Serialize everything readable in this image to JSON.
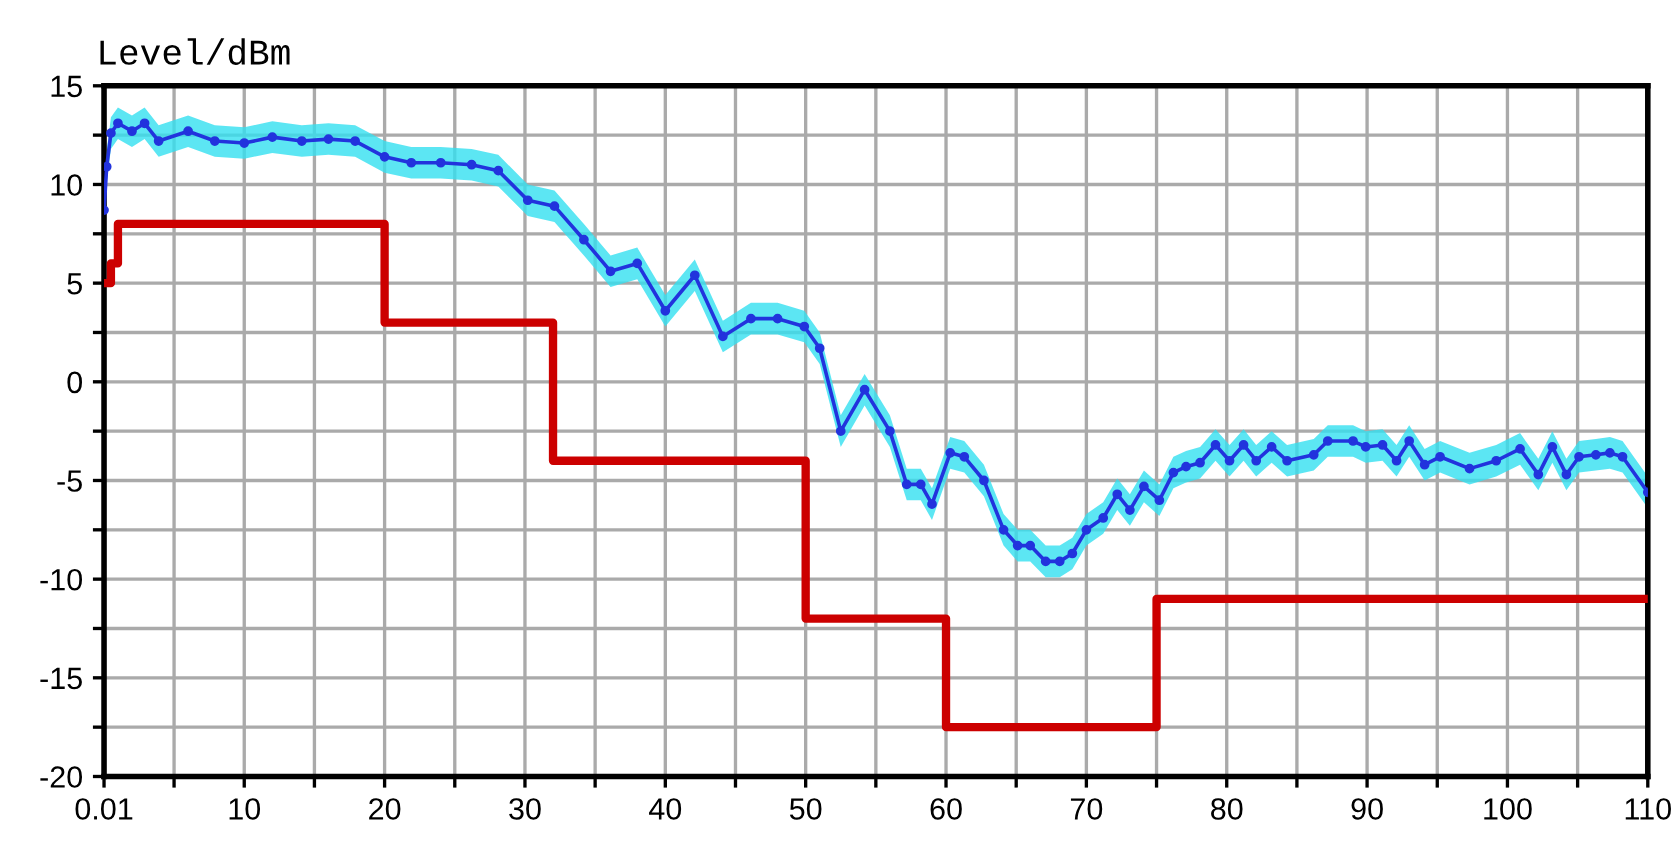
{
  "chart_data": {
    "type": "line",
    "ylabel": "Level/dBm",
    "xlim": [
      0.01,
      110
    ],
    "ylim": [
      -20,
      15
    ],
    "xticks": [
      {
        "value": 0.01,
        "label": "0.01"
      },
      {
        "value": 5,
        "label": null
      },
      10,
      {
        "value": 15,
        "label": null
      },
      20,
      {
        "value": 25,
        "label": null
      },
      30,
      {
        "value": 35,
        "label": null
      },
      40,
      {
        "value": 45,
        "label": null
      },
      50,
      {
        "value": 55,
        "label": null
      },
      60,
      {
        "value": 65,
        "label": null
      },
      70,
      {
        "value": 75,
        "label": null
      },
      80,
      {
        "value": 85,
        "label": null
      },
      90,
      {
        "value": 95,
        "label": null
      },
      100,
      {
        "value": 105,
        "label": null
      },
      110
    ],
    "yticks": [
      -20,
      {
        "value": -17.5,
        "label": null
      },
      -15,
      {
        "value": -12.5,
        "label": null
      },
      -10,
      {
        "value": -7.5,
        "label": null
      },
      -5,
      {
        "value": -2.5,
        "label": null
      },
      0,
      {
        "value": 2.5,
        "label": null
      },
      5,
      {
        "value": 7.5,
        "label": null
      },
      10,
      {
        "value": 12.5,
        "label": null
      },
      15
    ],
    "grid": true,
    "legend": false,
    "series": [
      {
        "color": "#2233dd",
        "marker": "circle",
        "x": [
          0.01,
          0.2,
          0.5,
          1,
          2,
          2.9,
          3.9,
          6,
          7.9,
          10,
          12,
          14.1,
          16,
          17.9,
          20,
          21.9,
          24,
          26.2,
          28.1,
          30.2,
          32.1,
          34.2,
          36.1,
          38,
          40,
          42.1,
          44.1,
          46.1,
          48,
          49.9,
          51,
          52.5,
          54.2,
          56,
          57.2,
          58.2,
          59,
          60.3,
          61.3,
          62.7,
          64.1,
          65.1,
          66,
          67.1,
          68.1,
          69,
          70,
          71.2,
          72.2,
          73.1,
          74.1,
          75.2,
          76.2,
          77.1,
          78.1,
          79.2,
          80.2,
          81.2,
          82.1,
          83.2,
          84.3,
          86.2,
          87.2,
          89,
          89.9,
          91.1,
          92.1,
          93,
          94.1,
          95.2,
          97.3,
          99.2,
          100.9,
          102.2,
          103.2,
          104.2,
          105.1,
          106.3,
          107.3,
          108.2,
          110
        ],
        "values": [
          8.7,
          10.9,
          12.6,
          13.1,
          12.7,
          13.1,
          12.2,
          12.7,
          12.2,
          12.1,
          12.4,
          12.2,
          12.3,
          12.2,
          11.4,
          11.1,
          11.1,
          11.0,
          10.7,
          9.2,
          8.9,
          7.2,
          5.6,
          6.0,
          3.6,
          5.4,
          2.3,
          3.2,
          3.2,
          2.8,
          1.7,
          -2.5,
          -0.4,
          -2.5,
          -5.2,
          -5.2,
          -6.2,
          -3.6,
          -3.8,
          -5.0,
          -7.5,
          -8.3,
          -8.3,
          -9.1,
          -9.1,
          -8.7,
          -7.5,
          -6.9,
          -5.7,
          -6.5,
          -5.3,
          -6.0,
          -4.6,
          -4.3,
          -4.1,
          -3.2,
          -4.0,
          -3.2,
          -4.0,
          -3.3,
          -4.0,
          -3.7,
          -3.0,
          -3.0,
          -3.3,
          -3.2,
          -4.0,
          -3.0,
          -4.2,
          -3.8,
          -4.4,
          -4.0,
          -3.4,
          -4.7,
          -3.3,
          -4.7,
          -3.8,
          -3.7,
          -3.6,
          -3.8,
          -5.6
        ],
        "lower": [
          7.9,
          10.1,
          11.8,
          12.3,
          11.9,
          12.3,
          11.4,
          11.9,
          11.4,
          11.3,
          11.6,
          11.4,
          11.5,
          11.4,
          10.6,
          10.3,
          10.3,
          10.2,
          9.9,
          8.4,
          8.1,
          6.4,
          4.8,
          5.2,
          2.8,
          4.6,
          1.5,
          2.4,
          2.4,
          2.0,
          0.9,
          -3.3,
          -1.2,
          -3.3,
          -6.0,
          -6.0,
          -7.0,
          -4.4,
          -4.6,
          -5.8,
          -8.3,
          -9.1,
          -9.1,
          -9.9,
          -9.9,
          -9.5,
          -8.3,
          -7.7,
          -6.5,
          -7.3,
          -6.1,
          -6.8,
          -5.4,
          -5.1,
          -4.9,
          -4.0,
          -4.8,
          -4.0,
          -4.8,
          -4.1,
          -4.8,
          -4.5,
          -3.8,
          -3.8,
          -4.1,
          -4.0,
          -4.8,
          -3.8,
          -5.0,
          -4.6,
          -5.2,
          -4.8,
          -4.2,
          -5.5,
          -4.1,
          -5.5,
          -4.6,
          -4.5,
          -4.4,
          -4.6,
          -6.4
        ],
        "upper": [
          9.5,
          11.7,
          13.4,
          13.9,
          13.5,
          13.9,
          13.0,
          13.5,
          13.0,
          12.9,
          13.2,
          13.0,
          13.1,
          13.0,
          12.2,
          11.9,
          11.9,
          11.8,
          11.5,
          10.0,
          9.7,
          8.0,
          6.4,
          6.8,
          4.4,
          6.2,
          3.1,
          4.0,
          4.0,
          3.6,
          2.5,
          -1.7,
          0.4,
          -1.7,
          -4.4,
          -4.4,
          -5.4,
          -2.8,
          -3.0,
          -4.2,
          -6.7,
          -7.5,
          -7.5,
          -8.3,
          -8.3,
          -7.9,
          -6.7,
          -6.1,
          -4.9,
          -5.7,
          -4.5,
          -5.2,
          -3.8,
          -3.5,
          -3.3,
          -2.4,
          -3.2,
          -2.4,
          -3.2,
          -2.5,
          -3.2,
          -2.9,
          -2.2,
          -2.2,
          -2.5,
          -2.4,
          -3.2,
          -2.2,
          -3.4,
          -3.0,
          -3.6,
          -3.2,
          -2.6,
          -3.9,
          -2.5,
          -3.9,
          -3.0,
          -2.9,
          -2.8,
          -3.0,
          -4.8
        ]
      },
      {
        "type": "step",
        "color": "#cc0000",
        "marker": "none",
        "x": [
          0.01,
          0.5,
          1,
          20,
          32,
          50,
          60,
          75,
          110
        ],
        "values": [
          5,
          6,
          8,
          3,
          -4,
          -12,
          -17.5,
          -11,
          -11
        ]
      }
    ]
  }
}
